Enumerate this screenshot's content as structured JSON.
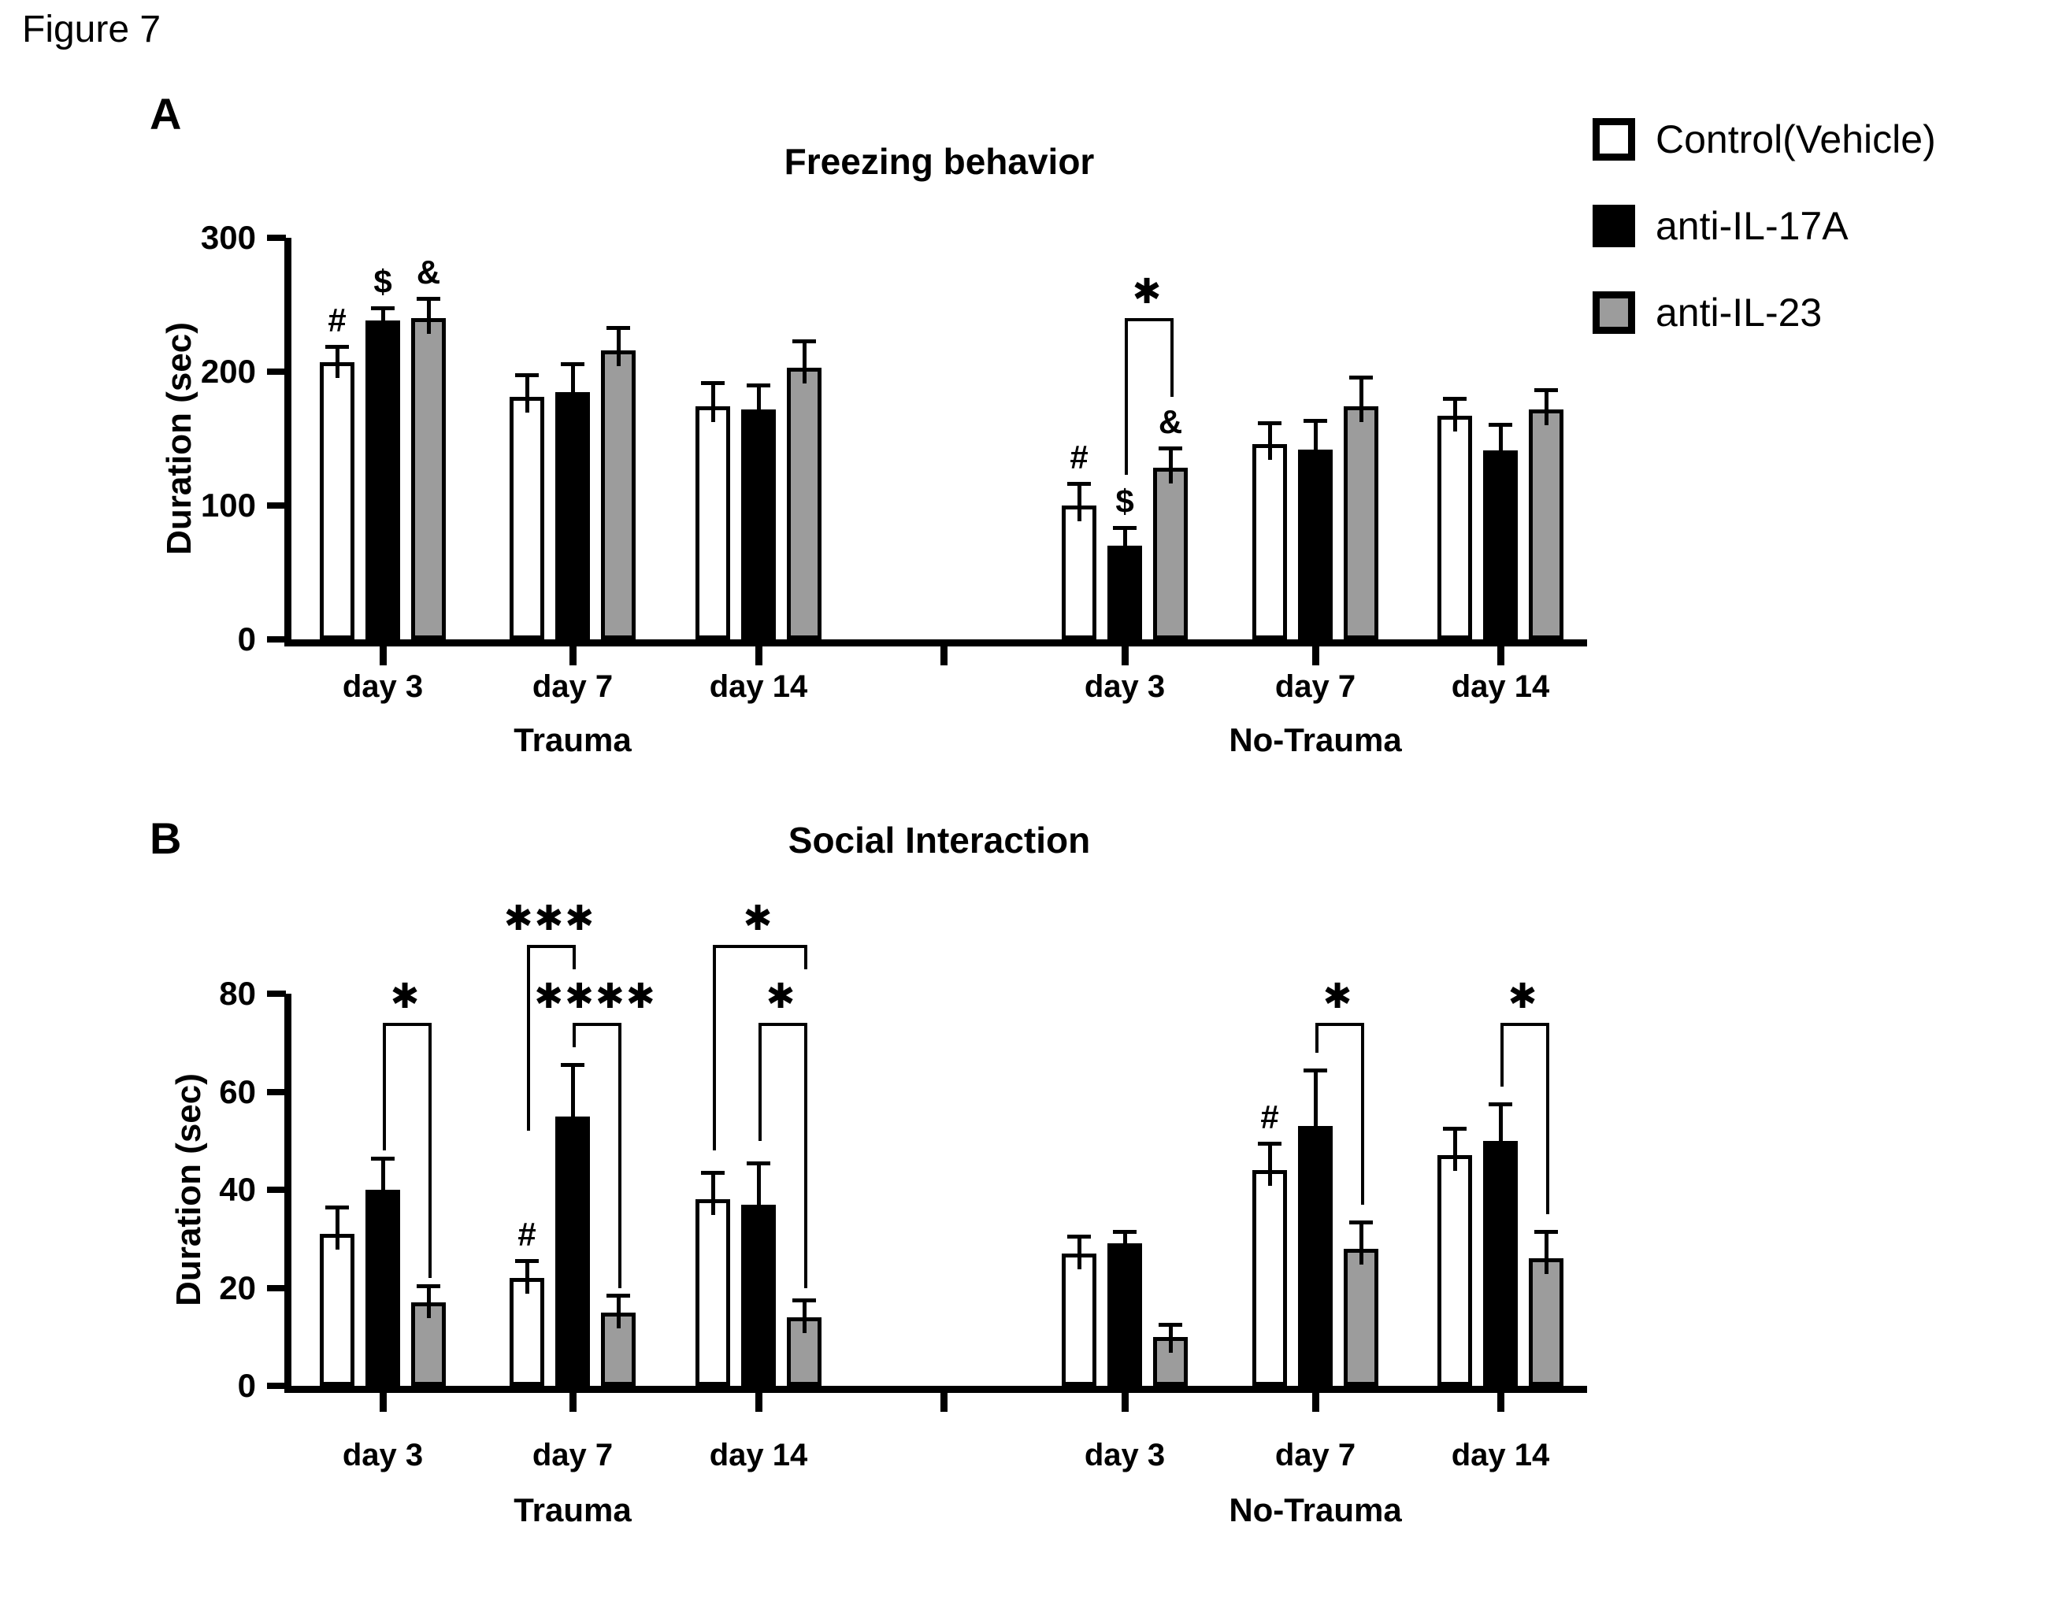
{
  "figure_label": "Figure 7",
  "legend": {
    "items": [
      {
        "label": "Control(Vehicle)",
        "fill": "#ffffff"
      },
      {
        "label": "anti-IL-17A",
        "fill": "#000000"
      },
      {
        "label": "anti-IL-23",
        "fill": "#9c9c9c"
      }
    ]
  },
  "colors": {
    "outline": "#000000",
    "gray_fill": "#9c9c9c",
    "white_fill": "#ffffff",
    "black_fill": "#000000"
  },
  "chart_data": [
    {
      "type": "bar",
      "panel": "A",
      "title": "Freezing behavior",
      "ylabel": "Duration (sec)",
      "ylim": [
        0,
        300
      ],
      "yticks": [
        0,
        100,
        200,
        300
      ],
      "grid": false,
      "legend_position": "top-right",
      "groups": [
        {
          "label": "Trauma"
        },
        {
          "label": "No-Trauma"
        }
      ],
      "categories": [
        "day 3",
        "day 7",
        "day 14"
      ],
      "series": [
        {
          "name": "Control(Vehicle)",
          "fill": "#ffffff",
          "values": [
            [
              207,
              181,
              174
            ],
            [
              100,
              146,
              167
            ]
          ],
          "sem": [
            [
              10,
              15,
              16
            ],
            [
              15,
              14,
              11
            ]
          ]
        },
        {
          "name": "anti-IL-17A",
          "fill": "#000000",
          "values": [
            [
              238,
              185,
              172
            ],
            [
              70,
              142,
              141
            ]
          ],
          "sem": [
            [
              8,
              19,
              16
            ],
            [
              12,
              20,
              18
            ]
          ]
        },
        {
          "name": "anti-IL-23",
          "fill": "#9c9c9c",
          "values": [
            [
              240,
              216,
              203
            ],
            [
              128,
              174,
              172
            ]
          ],
          "sem": [
            [
              13,
              15,
              18
            ],
            [
              13,
              20,
              13
            ]
          ]
        }
      ],
      "symbols": [
        {
          "group": 0,
          "cat": 0,
          "series": 0,
          "text": "#"
        },
        {
          "group": 0,
          "cat": 0,
          "series": 1,
          "text": "$"
        },
        {
          "group": 0,
          "cat": 0,
          "series": 2,
          "text": "&"
        },
        {
          "group": 1,
          "cat": 0,
          "series": 0,
          "text": "#"
        },
        {
          "group": 1,
          "cat": 0,
          "series": 1,
          "text": "$"
        },
        {
          "group": 1,
          "cat": 0,
          "series": 2,
          "text": "&"
        }
      ],
      "brackets": [
        {
          "group": 1,
          "cat": 0,
          "from": 1,
          "to": 2,
          "label": "*",
          "top": 240,
          "left_end": 123,
          "right_end": 181
        }
      ]
    },
    {
      "type": "bar",
      "panel": "B",
      "title": "Social Interaction",
      "ylabel": "Duration (sec)",
      "ylim": [
        0,
        80
      ],
      "yticks": [
        0,
        20,
        40,
        60,
        80
      ],
      "grid": false,
      "groups": [
        {
          "label": "Trauma"
        },
        {
          "label": "No-Trauma"
        }
      ],
      "categories": [
        "day 3",
        "day 7",
        "day 14"
      ],
      "series": [
        {
          "name": "Control(Vehicle)",
          "fill": "#ffffff",
          "values": [
            [
              31,
              22,
              38
            ],
            [
              27,
              44,
              47
            ]
          ],
          "sem": [
            [
              5,
              3,
              5
            ],
            [
              3,
              5,
              5
            ]
          ]
        },
        {
          "name": "anti-IL-17A",
          "fill": "#000000",
          "values": [
            [
              40,
              55,
              37
            ],
            [
              29,
              53,
              50
            ]
          ],
          "sem": [
            [
              6,
              10,
              8
            ],
            [
              2,
              11,
              7
            ]
          ]
        },
        {
          "name": "anti-IL-23",
          "fill": "#9c9c9c",
          "values": [
            [
              17,
              15,
              14
            ],
            [
              10,
              28,
              26
            ]
          ],
          "sem": [
            [
              3,
              3,
              3
            ],
            [
              2,
              5,
              5
            ]
          ]
        }
      ],
      "symbols": [
        {
          "group": 0,
          "cat": 1,
          "series": 0,
          "text": "#"
        },
        {
          "group": 1,
          "cat": 1,
          "series": 0,
          "text": "#"
        }
      ],
      "brackets": [
        {
          "group": 0,
          "cat": 0,
          "from": 1,
          "to": 2,
          "label": "*",
          "top": 74,
          "left_end": 48,
          "right_end": 22
        },
        {
          "group": 0,
          "cat": 1,
          "from": 0,
          "to": 1,
          "label": "***",
          "top": 90,
          "left_end": 52,
          "right_end": 85
        },
        {
          "group": 0,
          "cat": 1,
          "from": 1,
          "to": 2,
          "label": "****",
          "top": 74,
          "left_end": 69,
          "right_end": 20
        },
        {
          "group": 0,
          "cat": 2,
          "from": 0,
          "to": 2,
          "label": "*",
          "top": 90,
          "left_end": 48,
          "right_end": 85
        },
        {
          "group": 0,
          "cat": 2,
          "from": 1,
          "to": 2,
          "label": "*",
          "top": 74,
          "left_end": 50,
          "right_end": 20
        },
        {
          "group": 1,
          "cat": 1,
          "from": 1,
          "to": 2,
          "label": "*",
          "top": 74,
          "left_end": 68,
          "right_end": 37
        },
        {
          "group": 1,
          "cat": 2,
          "from": 1,
          "to": 2,
          "label": "*",
          "top": 74,
          "left_end": 61,
          "right_end": 35
        }
      ]
    }
  ]
}
